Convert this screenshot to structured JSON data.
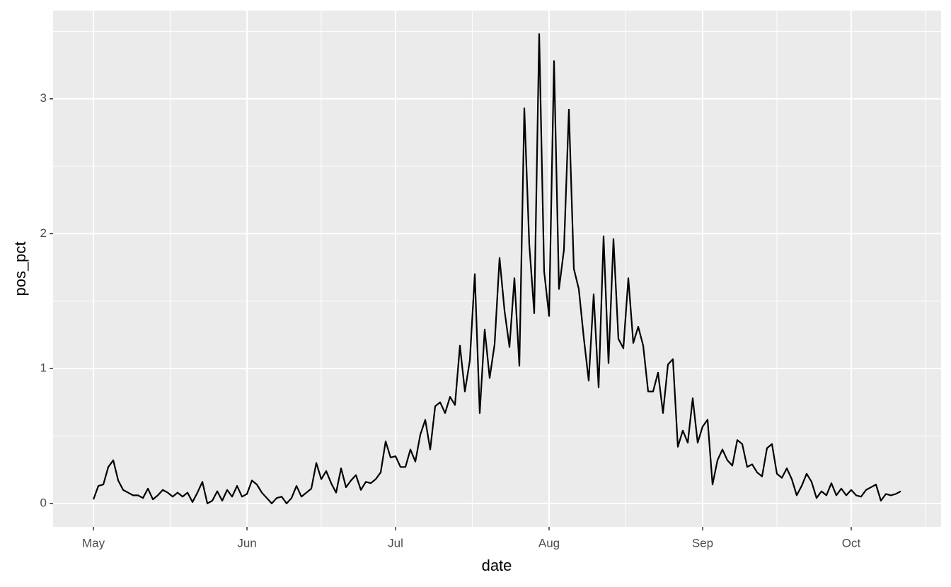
{
  "chart_data": {
    "type": "line",
    "x_label": "date",
    "y_label": "pos_pct",
    "categories": [
      "May",
      null,
      null,
      null,
      null,
      null,
      null,
      null,
      null,
      null,
      null,
      null,
      null,
      null,
      null,
      null,
      null,
      null,
      null,
      null,
      null,
      null,
      null,
      null,
      null,
      null,
      null,
      null,
      null,
      null,
      null,
      "Jun",
      null,
      null,
      null,
      null,
      null,
      null,
      null,
      null,
      null,
      null,
      null,
      null,
      null,
      null,
      null,
      null,
      null,
      null,
      null,
      null,
      null,
      null,
      null,
      null,
      null,
      null,
      null,
      null,
      null,
      "Jul",
      null,
      null,
      null,
      null,
      null,
      null,
      null,
      null,
      null,
      null,
      null,
      null,
      null,
      null,
      null,
      null,
      null,
      null,
      null,
      null,
      null,
      null,
      null,
      null,
      null,
      null,
      null,
      null,
      null,
      null,
      "Aug",
      null,
      null,
      null,
      null,
      null,
      null,
      null,
      null,
      null,
      null,
      null,
      null,
      null,
      null,
      null,
      null,
      null,
      null,
      null,
      null,
      null,
      null,
      null,
      null,
      null,
      null,
      null,
      null,
      null,
      null,
      "Sep",
      null,
      null,
      null,
      null,
      null,
      null,
      null,
      null,
      null,
      null,
      null,
      null,
      null,
      null,
      null,
      null,
      null,
      null,
      null,
      null,
      null,
      null,
      null,
      null,
      null,
      null,
      null,
      null,
      null,
      "Oct",
      null,
      null,
      null,
      null,
      null,
      null,
      null,
      null,
      null,
      null
    ],
    "series": [
      {
        "color": "#000000",
        "values": [
          0.03,
          0.13,
          0.14,
          0.27,
          0.32,
          0.17,
          0.1,
          0.08,
          0.06,
          0.06,
          0.04,
          0.11,
          0.03,
          0.06,
          0.1,
          0.08,
          0.05,
          0.08,
          0.05,
          0.08,
          0.01,
          0.08,
          0.16,
          0.0,
          0.02,
          0.09,
          0.02,
          0.1,
          0.05,
          0.13,
          0.05,
          0.07,
          0.17,
          0.14,
          0.08,
          0.04,
          0.0,
          0.04,
          0.05,
          0.0,
          0.04,
          0.13,
          0.05,
          0.08,
          0.11,
          0.3,
          0.18,
          0.24,
          0.15,
          0.08,
          0.26,
          0.12,
          0.17,
          0.21,
          0.1,
          0.16,
          0.15,
          0.18,
          0.23,
          0.46,
          0.34,
          0.35,
          0.27,
          0.27,
          0.4,
          0.31,
          0.51,
          0.62,
          0.4,
          0.72,
          0.75,
          0.67,
          0.79,
          0.73,
          1.17,
          0.83,
          1.06,
          1.7,
          0.67,
          1.29,
          0.93,
          1.18,
          1.82,
          1.43,
          1.16,
          1.67,
          1.02,
          2.93,
          1.92,
          1.41,
          3.48,
          1.72,
          1.39,
          3.28,
          1.59,
          1.88,
          2.92,
          1.74,
          1.59,
          1.23,
          0.91,
          1.55,
          0.86,
          1.98,
          1.04,
          1.96,
          1.22,
          1.15,
          1.67,
          1.19,
          1.31,
          1.17,
          0.83,
          0.83,
          0.97,
          0.67,
          1.03,
          1.07,
          0.42,
          0.54,
          0.45,
          0.78,
          0.45,
          0.57,
          0.62,
          0.14,
          0.32,
          0.4,
          0.32,
          0.28,
          0.47,
          0.44,
          0.27,
          0.29,
          0.23,
          0.2,
          0.41,
          0.44,
          0.22,
          0.19,
          0.26,
          0.18,
          0.06,
          0.13,
          0.22,
          0.16,
          0.04,
          0.09,
          0.06,
          0.15,
          0.06,
          0.11,
          0.06,
          0.1,
          0.06,
          0.05,
          0.1,
          0.12,
          0.14,
          0.02,
          0.07,
          0.06,
          0.07,
          0.09
        ]
      }
    ],
    "ylim": [
      -0.174,
      3.654
    ],
    "yticks": [
      0,
      1,
      2,
      3
    ],
    "grid": true
  }
}
